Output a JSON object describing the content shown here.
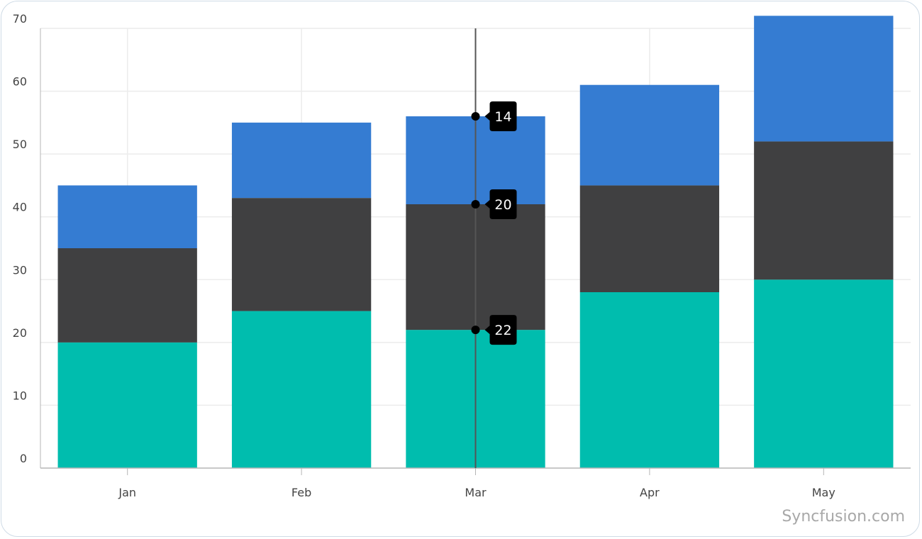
{
  "chart_data": {
    "type": "bar",
    "stacked": true,
    "categories": [
      "Jan",
      "Feb",
      "Mar",
      "Apr",
      "May"
    ],
    "series": [
      {
        "values": [
          20,
          25,
          22,
          28,
          30
        ]
      },
      {
        "values": [
          15,
          18,
          20,
          17,
          22
        ]
      },
      {
        "values": [
          10,
          12,
          14,
          16,
          20
        ]
      }
    ],
    "ylim": [
      0,
      70
    ],
    "y_ticks": [
      0,
      10,
      20,
      30,
      40,
      50,
      60,
      70
    ],
    "grid": true,
    "trackball": {
      "category": "Mar",
      "labels": [
        "14",
        "20",
        "22"
      ]
    }
  },
  "colors": {
    "series": [
      "#00bdae",
      "#404041",
      "#357cd2"
    ],
    "grid": "#ececec",
    "axis": "#b5b5b5",
    "trackball_line": "#555555",
    "tooltip_bg": "#000000"
  },
  "watermark": "Syncfusion.com"
}
